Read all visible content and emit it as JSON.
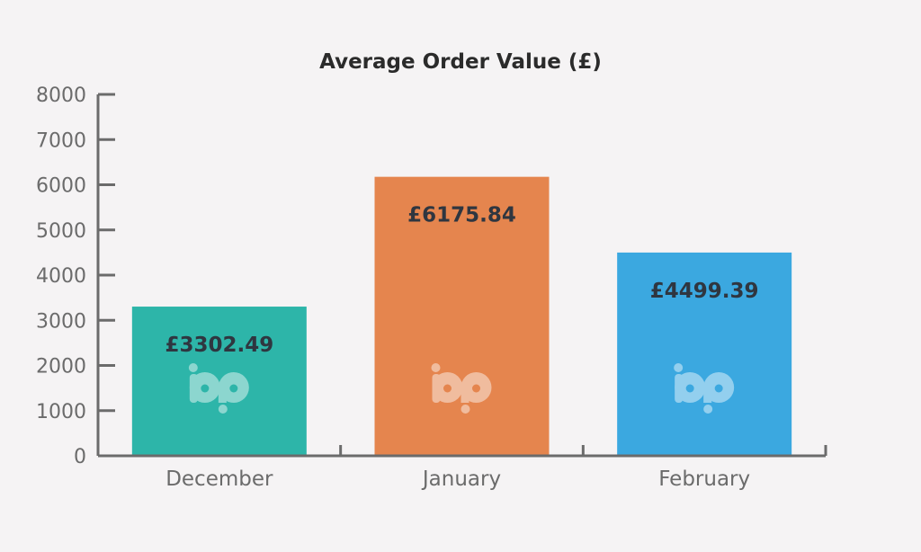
{
  "chart_data": {
    "type": "bar",
    "title": "Average Order Value (£)",
    "xlabel": "",
    "ylabel": "",
    "ylim": [
      0,
      8000
    ],
    "yticks": [
      0,
      1000,
      2000,
      3000,
      4000,
      5000,
      6000,
      7000,
      8000
    ],
    "categories": [
      "December",
      "January",
      "February"
    ],
    "values": [
      3302.49,
      6175.84,
      4499.39
    ],
    "data_labels": [
      "£3302.49",
      "£6175.84",
      "£4499.39"
    ],
    "colors": [
      "#2db5a9",
      "#e5854e",
      "#3ba8e0"
    ],
    "grid": false,
    "legend": "none",
    "watermark_icon": "bp-logo-icon"
  }
}
